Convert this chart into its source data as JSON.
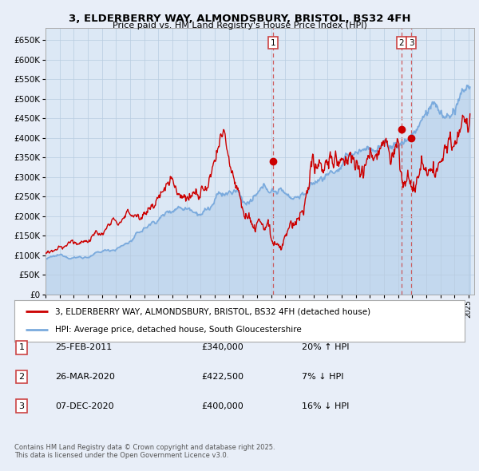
{
  "title": "3, ELDERBERRY WAY, ALMONDSBURY, BRISTOL, BS32 4FH",
  "subtitle": "Price paid vs. HM Land Registry's House Price Index (HPI)",
  "ylim": [
    0,
    680000
  ],
  "yticks": [
    0,
    50000,
    100000,
    150000,
    200000,
    250000,
    300000,
    350000,
    400000,
    450000,
    500000,
    550000,
    600000,
    650000
  ],
  "ytick_labels": [
    "£0",
    "£50K",
    "£100K",
    "£150K",
    "£200K",
    "£250K",
    "£300K",
    "£350K",
    "£400K",
    "£450K",
    "£500K",
    "£550K",
    "£600K",
    "£650K"
  ],
  "background_color": "#e8eef8",
  "plot_bg_color": "#dce8f5",
  "grid_color": "#b8cce0",
  "red_color": "#cc0000",
  "blue_color": "#7aaadd",
  "vline_color": "#cc4444",
  "transaction_years": [
    2011.14,
    2020.23,
    2020.93
  ],
  "transaction_prices": [
    340000,
    422500,
    400000
  ],
  "transaction_labels": [
    "1",
    "2",
    "3"
  ],
  "legend_label_red": "3, ELDERBERRY WAY, ALMONDSBURY, BRISTOL, BS32 4FH (detached house)",
  "legend_label_blue": "HPI: Average price, detached house, South Gloucestershire",
  "table_rows": [
    {
      "num": "1",
      "date": "25-FEB-2011",
      "price": "£340,000",
      "change": "20% ↑ HPI"
    },
    {
      "num": "2",
      "date": "26-MAR-2020",
      "price": "£422,500",
      "change": "7% ↓ HPI"
    },
    {
      "num": "3",
      "date": "07-DEC-2020",
      "price": "£400,000",
      "change": "16% ↓ HPI"
    }
  ],
  "footer": "Contains HM Land Registry data © Crown copyright and database right 2025.\nThis data is licensed under the Open Government Licence v3.0."
}
